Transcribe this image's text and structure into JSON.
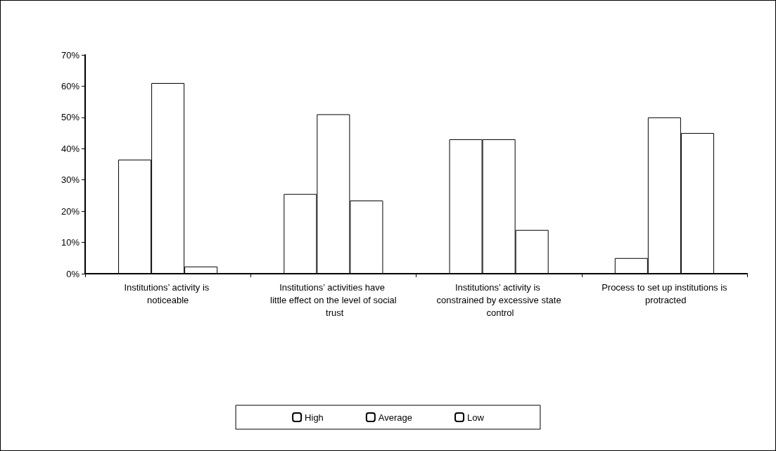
{
  "chart_data": {
    "type": "bar",
    "categories": [
      "Institutions’ activity is noticeable",
      "Institutions’ activities have little effect on the level of social trust",
      "Institutions’ activity is constrained by excessive state control",
      "Process to set up institutions is protracted"
    ],
    "series": [
      {
        "name": "High",
        "color": "#ffffff",
        "values": [
          36.5,
          25.5,
          43,
          5
        ]
      },
      {
        "name": "Average",
        "color": "#ffffff",
        "values": [
          61,
          51,
          43,
          50
        ]
      },
      {
        "name": "Low",
        "color": "#ffffff",
        "values": [
          2.3,
          23.4,
          14,
          45
        ]
      }
    ],
    "ylim": [
      0,
      70
    ],
    "yticks": [
      {
        "value": 0,
        "label": "0%"
      },
      {
        "value": 10,
        "label": "10%"
      },
      {
        "value": 20,
        "label": "20%"
      },
      {
        "value": 30,
        "label": "30%"
      },
      {
        "value": 40,
        "label": "40%"
      },
      {
        "value": 50,
        "label": "50%"
      },
      {
        "value": 60,
        "label": "60%"
      },
      {
        "value": 70,
        "label": "70%"
      }
    ],
    "grid": false,
    "legend": "bottom"
  }
}
